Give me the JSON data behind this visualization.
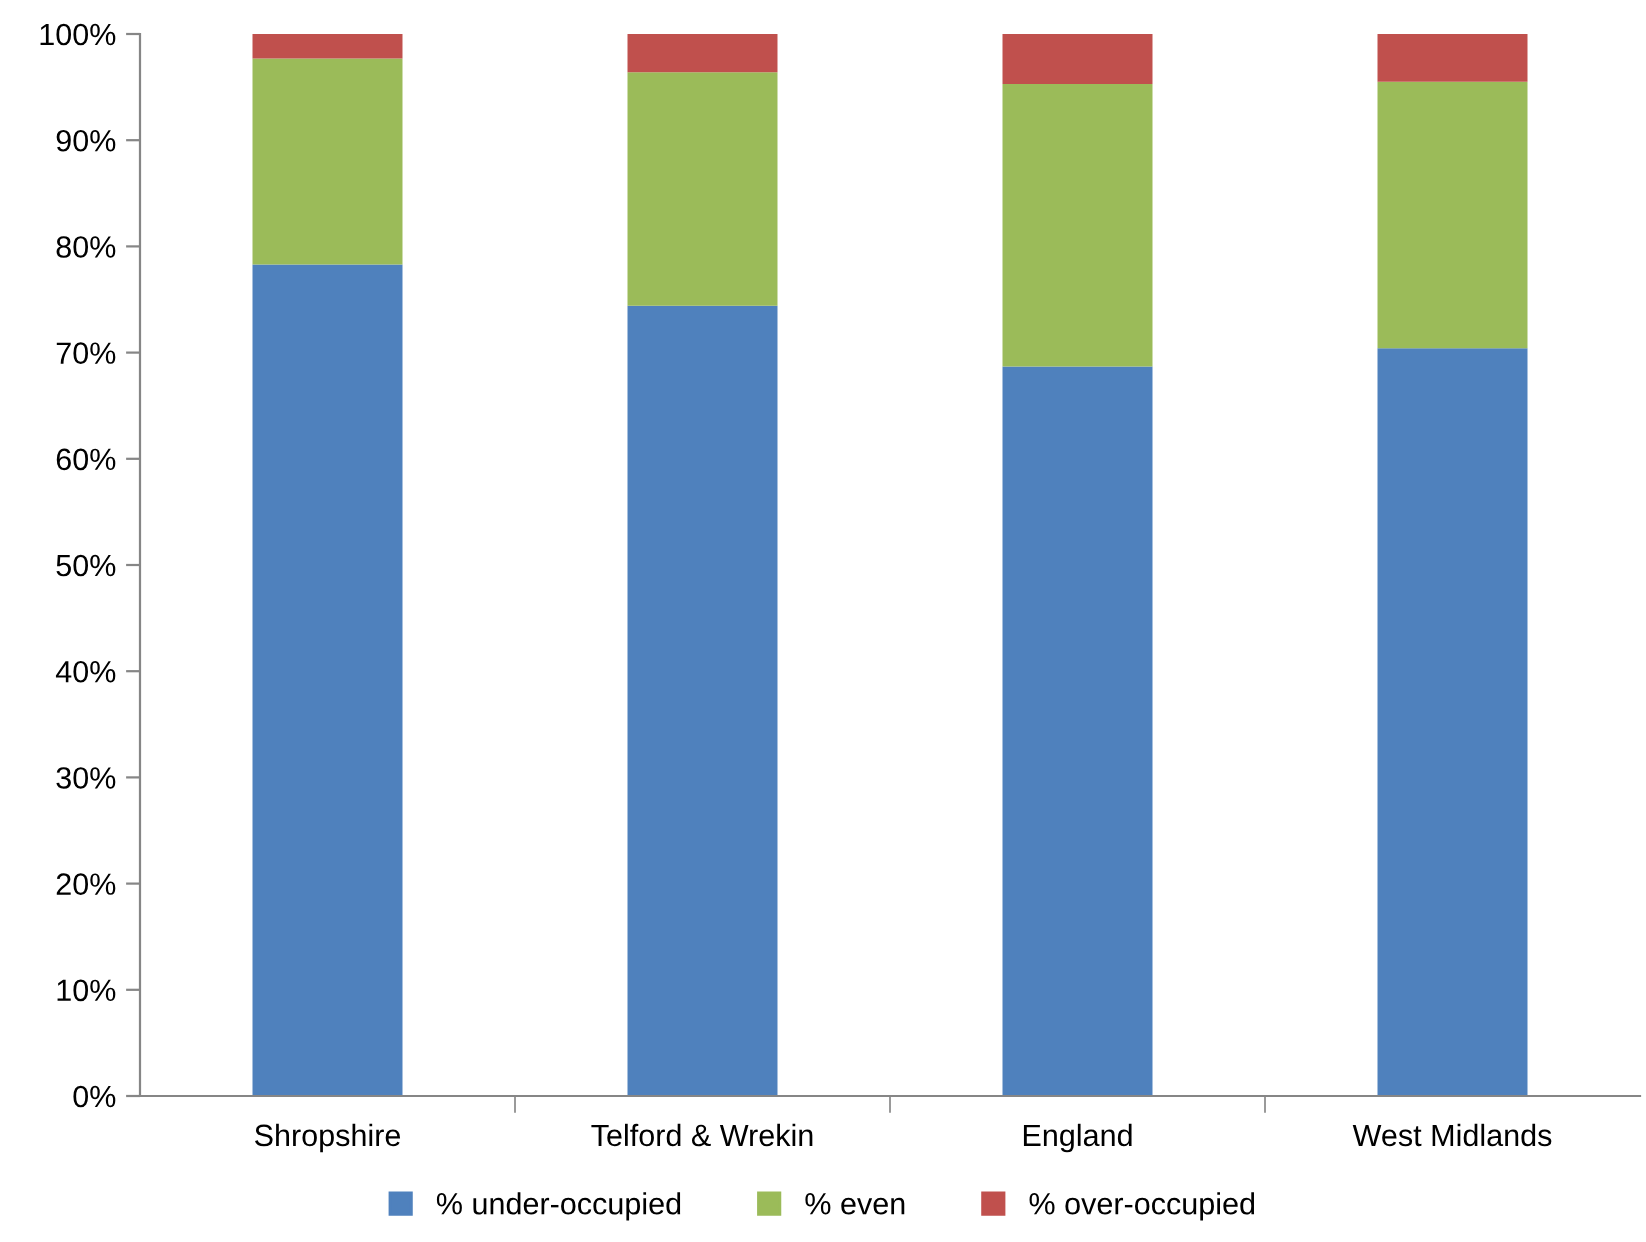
{
  "chart_data": {
    "type": "bar",
    "stacked": true,
    "categories": [
      "Shropshire",
      "Telford & Wrekin",
      "England",
      "West Midlands"
    ],
    "series": [
      {
        "name": "% under-occupied",
        "color": "#4f81bd",
        "values": [
          78.3,
          74.4,
          68.7,
          70.4
        ]
      },
      {
        "name": "% even",
        "color": "#9bbb59",
        "values": [
          19.4,
          22.0,
          26.6,
          25.1
        ]
      },
      {
        "name": "% over-occupied",
        "color": "#c0504d",
        "values": [
          2.3,
          3.6,
          4.7,
          4.5
        ]
      }
    ],
    "ylim": [
      0,
      100
    ],
    "yticks": [
      {
        "value": 0,
        "label": "0%"
      },
      {
        "value": 10,
        "label": "10%"
      },
      {
        "value": 20,
        "label": "20%"
      },
      {
        "value": 30,
        "label": "30%"
      },
      {
        "value": 40,
        "label": "40%"
      },
      {
        "value": 50,
        "label": "50%"
      },
      {
        "value": 60,
        "label": "60%"
      },
      {
        "value": 70,
        "label": "70%"
      },
      {
        "value": 80,
        "label": "80%"
      },
      {
        "value": 90,
        "label": "90%"
      },
      {
        "value": 100,
        "label": "100%"
      }
    ],
    "grid": false,
    "legend": "bottom"
  }
}
